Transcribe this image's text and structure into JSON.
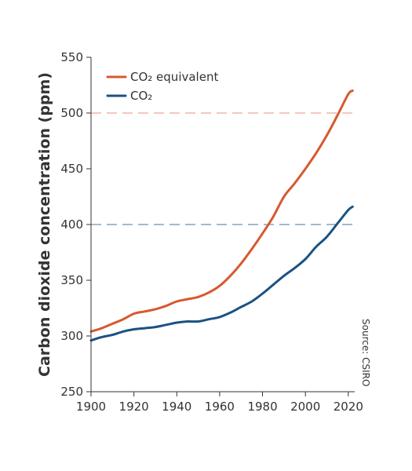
{
  "chart_data": {
    "type": "line",
    "title": "",
    "xlabel": "",
    "ylabel": "Carbon dioxide concentration (ppm)",
    "xlim": [
      1900,
      2023
    ],
    "ylim": [
      250,
      550
    ],
    "xticks": [
      1900,
      1920,
      1940,
      1960,
      1980,
      2000,
      2020
    ],
    "yticks": [
      250,
      300,
      350,
      400,
      450,
      500,
      550
    ],
    "grid": false,
    "legend_position": "top-left",
    "source": "Source: CSIRO",
    "reference_lines": [
      {
        "y": 500,
        "color": "#e8a990",
        "style": "dashed"
      },
      {
        "y": 400,
        "color": "#6f8fb0",
        "style": "dashed"
      }
    ],
    "series": [
      {
        "name": "CO₂ equivalent",
        "color": "#d8582f",
        "points": [
          [
            1900,
            304
          ],
          [
            1905,
            307
          ],
          [
            1910,
            311
          ],
          [
            1915,
            315
          ],
          [
            1920,
            320
          ],
          [
            1925,
            322
          ],
          [
            1930,
            324
          ],
          [
            1935,
            327
          ],
          [
            1940,
            331
          ],
          [
            1945,
            333
          ],
          [
            1950,
            335
          ],
          [
            1955,
            339
          ],
          [
            1960,
            345
          ],
          [
            1965,
            354
          ],
          [
            1970,
            365
          ],
          [
            1975,
            378
          ],
          [
            1980,
            392
          ],
          [
            1985,
            407
          ],
          [
            1990,
            425
          ],
          [
            1995,
            437
          ],
          [
            2000,
            450
          ],
          [
            2005,
            464
          ],
          [
            2010,
            480
          ],
          [
            2015,
            498
          ],
          [
            2020,
            517
          ],
          [
            2022,
            520
          ]
        ]
      },
      {
        "name": "CO₂",
        "color": "#1a5283",
        "points": [
          [
            1900,
            296
          ],
          [
            1905,
            299
          ],
          [
            1910,
            301
          ],
          [
            1915,
            304
          ],
          [
            1920,
            306
          ],
          [
            1925,
            307
          ],
          [
            1930,
            308
          ],
          [
            1935,
            310
          ],
          [
            1940,
            312
          ],
          [
            1945,
            313
          ],
          [
            1950,
            313
          ],
          [
            1955,
            315
          ],
          [
            1960,
            317
          ],
          [
            1965,
            321
          ],
          [
            1970,
            326
          ],
          [
            1975,
            331
          ],
          [
            1980,
            338
          ],
          [
            1985,
            346
          ],
          [
            1990,
            354
          ],
          [
            1995,
            361
          ],
          [
            2000,
            369
          ],
          [
            2005,
            380
          ],
          [
            2010,
            389
          ],
          [
            2015,
            401
          ],
          [
            2020,
            413
          ],
          [
            2022,
            416
          ]
        ]
      }
    ]
  }
}
